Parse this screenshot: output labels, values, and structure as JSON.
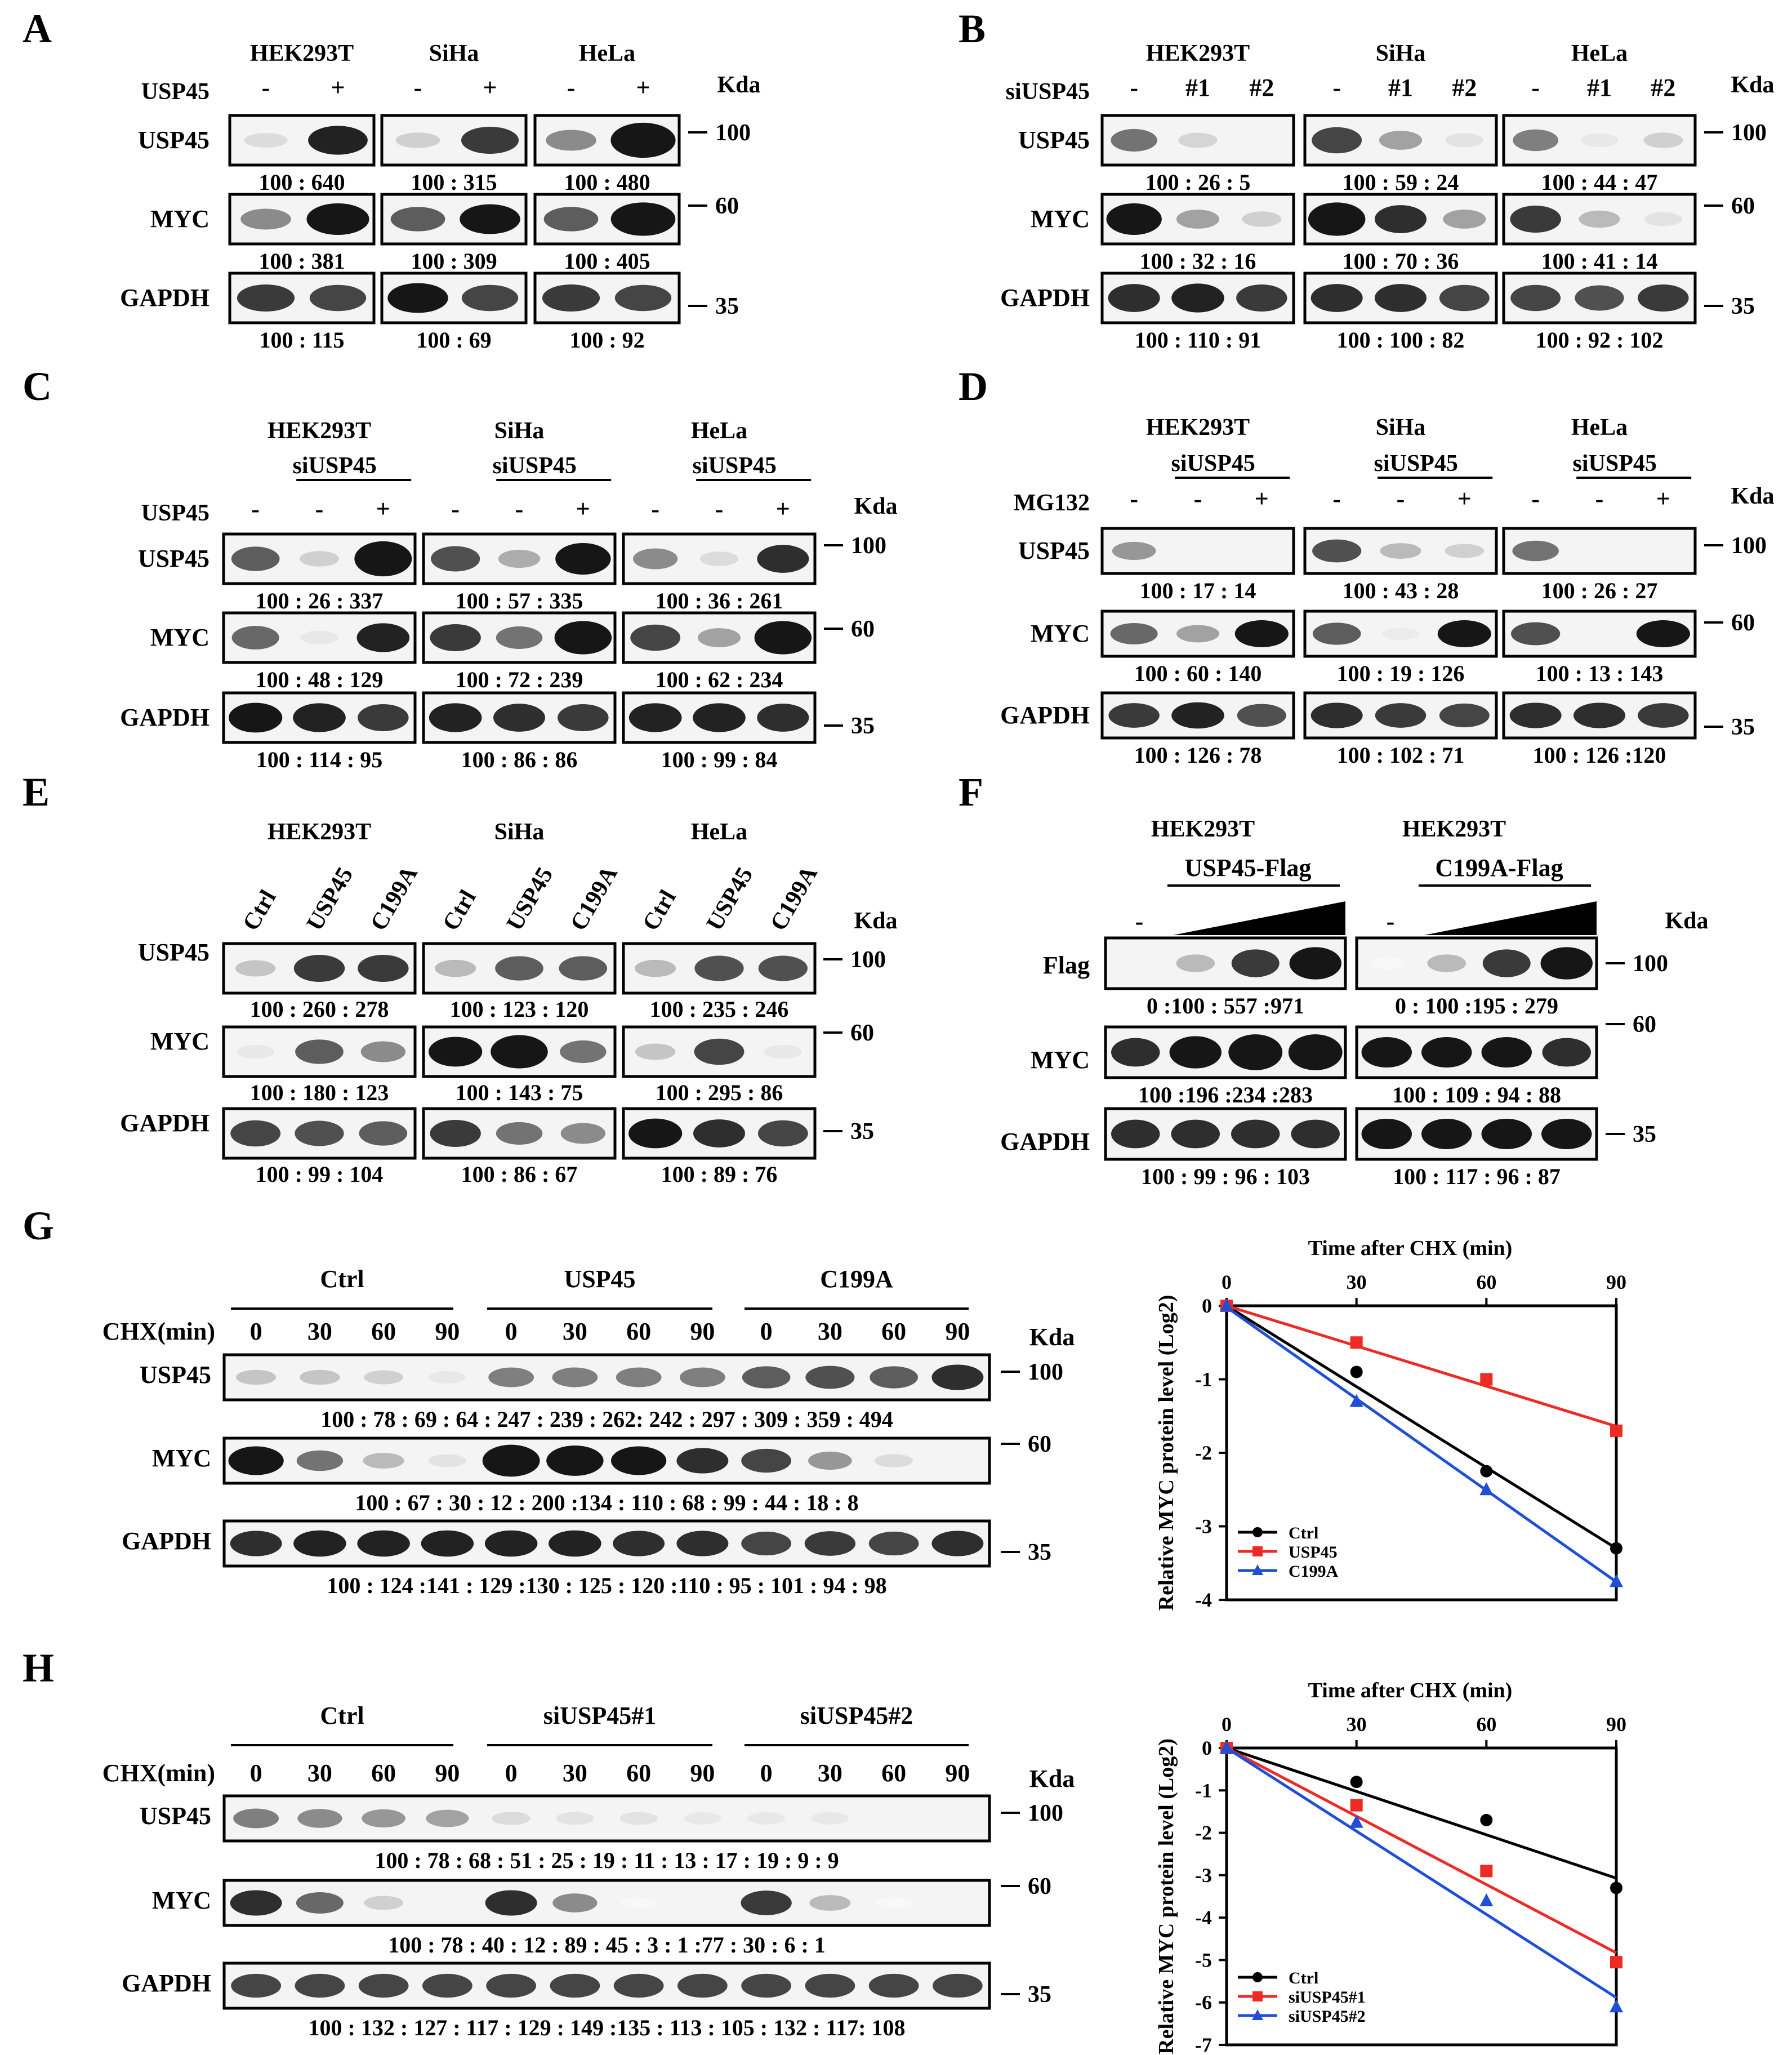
{
  "panels": {
    "A": {
      "letter": "A",
      "cells": [
        "HEK293T",
        "SiHa",
        "HeLa"
      ],
      "treat_label": "USP45",
      "treat_signs": [
        "-",
        "+"
      ],
      "kda": "Kda",
      "rows": [
        "USP45",
        "MYC",
        "GAPDH"
      ],
      "markers": [
        "100",
        "60",
        "35"
      ],
      "quant": {
        "USP45": [
          "100 : 640",
          "100 :  315",
          "100 :  480"
        ],
        "MYC": [
          "100 : 381",
          "100 :  309",
          "100 :  405"
        ],
        "GAPDH": [
          "100 : 115",
          "100 :  69",
          "100 :  92"
        ]
      }
    },
    "B": {
      "letter": "B",
      "cells": [
        "HEK293T",
        "SiHa",
        "HeLa"
      ],
      "treat_label": "siUSP45",
      "treat_signs": [
        "-",
        "#1",
        "#2"
      ],
      "kda": "Kda",
      "rows": [
        "USP45",
        "MYC",
        "GAPDH"
      ],
      "markers": [
        "100",
        "60",
        "35"
      ],
      "quant": {
        "USP45": [
          "100 :  26 :  5",
          "100 :  59 :  24",
          "100 :  44 :  47"
        ],
        "MYC": [
          "100 :  32 :  16",
          "100 : 70 :  36",
          "100 :  41 :  14"
        ],
        "GAPDH": [
          "100 : 110 : 91",
          "100 : 100 : 82",
          "100 : 92 : 102"
        ]
      }
    },
    "C": {
      "letter": "C",
      "cells": [
        "HEK293T",
        "SiHa",
        "HeLa"
      ],
      "sub_label": "siUSP45",
      "treat_label": "USP45",
      "treat_signs": [
        "-",
        "-",
        "+"
      ],
      "kda": "Kda",
      "rows": [
        "USP45",
        "MYC",
        "GAPDH"
      ],
      "markers": [
        "100",
        "60",
        "35"
      ],
      "quant": {
        "USP45": [
          "100 :  26 : 337",
          "100 : 57 : 335",
          "100 : 36 : 261"
        ],
        "MYC": [
          "100 :  48 : 129",
          "100 : 72 : 239",
          "100 : 62 : 234"
        ],
        "GAPDH": [
          "100 : 114 : 95",
          "100 : 86 : 86",
          "100 : 99 : 84"
        ]
      }
    },
    "D": {
      "letter": "D",
      "cells": [
        "HEK293T",
        "SiHa",
        "HeLa"
      ],
      "sub_label": "siUSP45",
      "treat_label": "MG132",
      "treat_signs": [
        "-",
        "-",
        "+"
      ],
      "kda": "Kda",
      "rows": [
        "USP45",
        "MYC",
        "GAPDH"
      ],
      "markers": [
        "100",
        "60",
        "35"
      ],
      "quant": {
        "USP45": [
          "100 : 17 : 14",
          "100 : 43 :  28",
          "100 : 26 :  27"
        ],
        "MYC": [
          "100 :  60 : 140",
          "100 : 19 : 126",
          "100 : 13 : 143"
        ],
        "GAPDH": [
          "100 : 126 : 78",
          "100 : 102 : 71",
          "100 : 126 :120"
        ]
      }
    },
    "E": {
      "letter": "E",
      "cells": [
        "HEK293T",
        "SiHa",
        "HeLa"
      ],
      "lanes": [
        "Ctrl",
        "USP45",
        "C199A"
      ],
      "kda": "Kda",
      "rows": [
        "USP45",
        "MYC",
        "GAPDH"
      ],
      "markers": [
        "100",
        "60",
        "35"
      ],
      "quant": {
        "USP45": [
          "100 : 260 : 278",
          "100 : 123 : 120",
          "100 : 235 : 246"
        ],
        "MYC": [
          "100 : 180 : 123",
          "100 : 143 : 75",
          "100 : 295 : 86"
        ],
        "GAPDH": [
          "100 :  99  : 104",
          "100 : 86 :  67",
          "100 : 89  : 76"
        ]
      }
    },
    "F": {
      "letter": "F",
      "cells": [
        "HEK293T",
        "HEK293T"
      ],
      "constructs": [
        "USP45-Flag",
        "C199A-Flag"
      ],
      "minus": "-",
      "kda": "Kda",
      "rows": [
        "Flag",
        "MYC",
        "GAPDH"
      ],
      "markers": [
        "100",
        "60",
        "35"
      ],
      "quant": {
        "Flag": [
          "0 :100 : 557 :971",
          "0  : 100 :195 : 279"
        ],
        "MYC": [
          "100 :196 :234 :283",
          "100 : 109 : 94 : 88"
        ],
        "GAPDH": [
          "100 : 99 : 96 : 103",
          "100 : 117 : 96 : 87"
        ]
      }
    },
    "G": {
      "letter": "G",
      "groups": [
        "Ctrl",
        "USP45",
        "C199A"
      ],
      "chx_label": "CHX(min)",
      "times": [
        "0",
        "30",
        "60",
        "90"
      ],
      "kda": "Kda",
      "rows": [
        "USP45",
        "MYC",
        "GAPDH"
      ],
      "markers": [
        "100",
        "60",
        "35"
      ],
      "quant": {
        "USP45": "100 :  78 :  69  :   64 : 247 : 239 : 262: 242 : 297 : 309 : 359 : 494",
        "MYC": "100 :  67 :  30  :  12 : 200 :134 : 110  : 68  :  99 :  44  :   18  :   8",
        "GAPDH": "100 : 124 :141 : 129 :130 : 125 : 120  :110  : 95 : 101  :  94  : 98"
      }
    },
    "H": {
      "letter": "H",
      "groups": [
        "Ctrl",
        "siUSP45#1",
        "siUSP45#2"
      ],
      "chx_label": "CHX(min)",
      "times": [
        "0",
        "30",
        "60",
        "90"
      ],
      "kda": "Kda",
      "rows": [
        "USP45",
        "MYC",
        "GAPDH"
      ],
      "markers": [
        "100",
        "60",
        "35"
      ],
      "quant": {
        "USP45": "100 :  78 :  68 :  51 :  25 :   19  :  11  : 13  :  17 :  19  :   9   :   9",
        "MYC": "100 :  78 :  40  :  12 :  89 :   45  :   3   :  1  :77  :  30  :   6   :   1",
        "GAPDH": "100 : 132 : 127 : 117 : 129 : 149 :135 : 113 : 105 : 132 : 117: 108"
      }
    }
  },
  "chart_data": [
    {
      "type": "line",
      "panel": "G",
      "title": "Time after CHX (min)",
      "ylabel": "Relative MYC protein level (Log2)",
      "x": [
        0,
        30,
        60,
        90
      ],
      "xticks": [
        "0",
        "30",
        "60",
        "90"
      ],
      "ylim": [
        -4,
        0
      ],
      "yticks": [
        "0",
        "-1",
        "-2",
        "-3",
        "-4"
      ],
      "x_axis_position": "top",
      "legend_position": "bottom-left",
      "series": [
        {
          "name": "Ctrl",
          "color": "#000000",
          "marker": "circle",
          "values": [
            0,
            -0.9,
            -2.25,
            -3.3
          ]
        },
        {
          "name": "USP45",
          "color": "#ee2a24",
          "marker": "square",
          "values": [
            0,
            -0.5,
            -1.0,
            -1.7
          ]
        },
        {
          "name": "C199A",
          "color": "#1f4ed8",
          "marker": "triangle",
          "values": [
            0,
            -1.3,
            -2.5,
            -3.75
          ]
        }
      ]
    },
    {
      "type": "line",
      "panel": "H",
      "title": "Time after CHX (min)",
      "ylabel": "Relative MYC protein level (Log2)",
      "x": [
        0,
        30,
        60,
        90
      ],
      "xticks": [
        "0",
        "30",
        "60",
        "90"
      ],
      "ylim": [
        -7,
        0
      ],
      "yticks": [
        "0",
        "-1",
        "-2",
        "-3",
        "-4",
        "-5",
        "-6",
        "-7"
      ],
      "x_axis_position": "top",
      "legend_position": "bottom-left",
      "series": [
        {
          "name": "Ctrl",
          "color": "#000000",
          "marker": "circle",
          "values": [
            0,
            -0.8,
            -1.7,
            -3.3
          ]
        },
        {
          "name": "siUSP45#1",
          "color": "#ee2a24",
          "marker": "square",
          "values": [
            0,
            -1.35,
            -2.9,
            -5.05
          ]
        },
        {
          "name": "siUSP45#2",
          "color": "#1f4ed8",
          "marker": "triangle",
          "values": [
            0,
            -1.75,
            -3.6,
            -6.1
          ]
        }
      ]
    }
  ]
}
